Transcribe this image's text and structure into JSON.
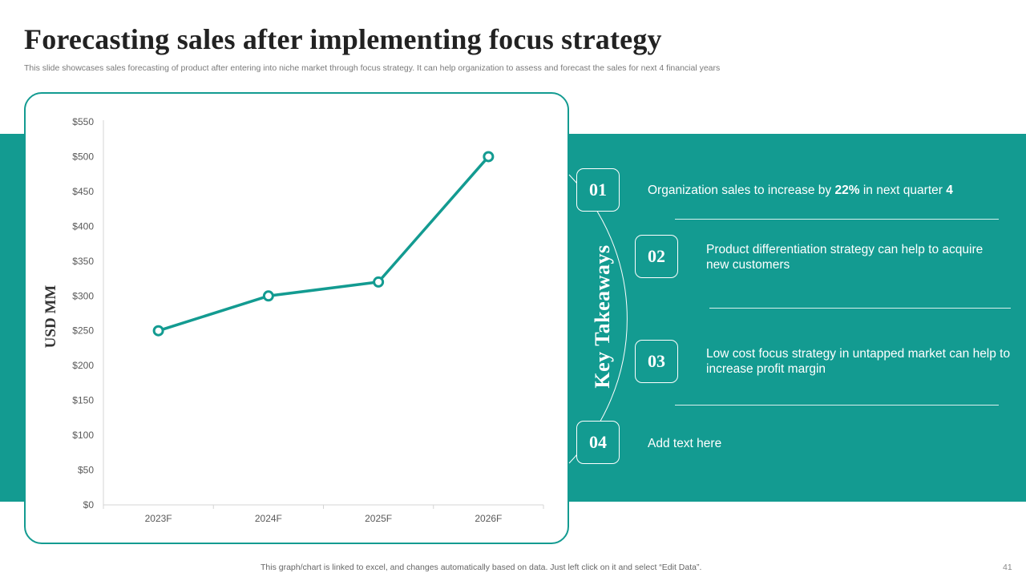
{
  "slide": {
    "title": "Forecasting sales after implementing  focus strategy",
    "subtitle": "This slide showcases sales forecasting of product after entering into niche market through focus strategy.  It can help organization to assess and forecast the sales for next 4 financial years",
    "footer": "This graph/chart is linked to excel,  and changes automatically based on data. Just left click on it and select “Edit Data”.",
    "page_number": "41"
  },
  "colors": {
    "accent": "#139b91",
    "title": "#222222",
    "white": "#ffffff"
  },
  "takeaways": {
    "heading": "Key Takeaways",
    "items": [
      {
        "number": "01",
        "text_before": "Organization sales to increase by ",
        "bold1": "22%",
        "text_mid": " in next quarter ",
        "bold2": "4"
      },
      {
        "number": "02",
        "text": "Product differentiation strategy can help to acquire new customers"
      },
      {
        "number": "03",
        "text": "Low cost focus strategy in untapped market can help to increase profit margin"
      },
      {
        "number": "04",
        "text": "Add text here"
      }
    ]
  },
  "chart_data": {
    "type": "line",
    "categories": [
      "2023F",
      "2024F",
      "2025F",
      "2026F"
    ],
    "series": [
      {
        "values": [
          250,
          300,
          320,
          500
        ]
      }
    ],
    "ylabel": "USD MM",
    "xlabel": "",
    "ylim": [
      0,
      550
    ],
    "yticks": [
      0,
      50,
      100,
      150,
      200,
      250,
      300,
      350,
      400,
      450,
      500,
      550
    ],
    "ytick_labels": [
      "$0",
      "$50",
      "$100",
      "$150",
      "$200",
      "$250",
      "$300",
      "$350",
      "$400",
      "$450",
      "$500",
      "$550"
    ],
    "grid": false,
    "legend": "none",
    "line_color": "#139b91"
  }
}
